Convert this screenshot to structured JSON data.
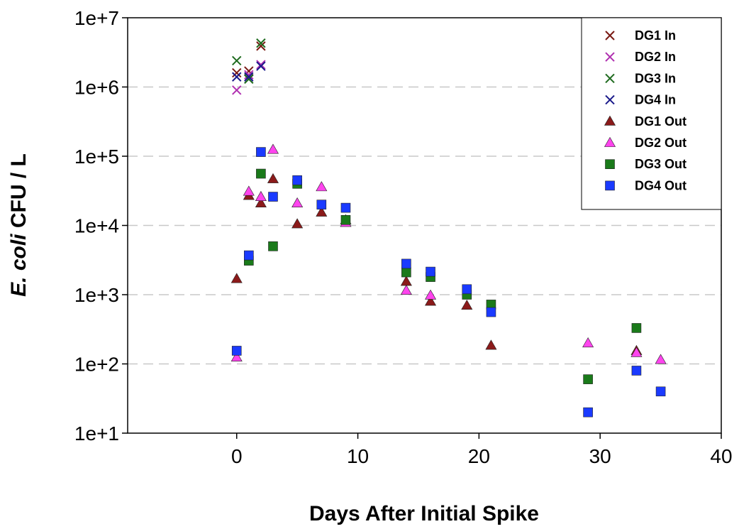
{
  "chart_data": {
    "type": "scatter",
    "title": "",
    "xlabel": "Days After Initial Spike",
    "ylabel_italic": "E. coli",
    "ylabel_rest": " CFU / L",
    "xlim": [
      -9,
      40
    ],
    "ylim": [
      10,
      10000000
    ],
    "yscale": "log",
    "x_ticks": [
      0,
      10,
      20,
      30,
      40
    ],
    "x_tick_labels": [
      "0",
      "10",
      "20",
      "30",
      "40"
    ],
    "y_ticks": [
      10,
      100,
      1000,
      10000,
      100000,
      1000000,
      10000000
    ],
    "y_tick_labels": [
      "1e+1",
      "1e+2",
      "1e+3",
      "1e+4",
      "1e+5",
      "1e+6",
      "1e+7"
    ],
    "grid": "horizontal dashed",
    "legend_position": "top-right",
    "series": [
      {
        "name": "DG1 In",
        "marker": "x",
        "color": "#7a1a14",
        "points": [
          [
            0,
            1600000
          ],
          [
            1,
            1700000
          ],
          [
            2,
            3900000
          ]
        ]
      },
      {
        "name": "DG2 In",
        "marker": "x",
        "color": "#b030b0",
        "points": [
          [
            0,
            900000
          ],
          [
            1,
            1500000
          ],
          [
            2,
            2100000
          ]
        ]
      },
      {
        "name": "DG3 In",
        "marker": "x",
        "color": "#1e6a1e",
        "points": [
          [
            0,
            2400000
          ],
          [
            1,
            1300000
          ],
          [
            2,
            4300000
          ]
        ]
      },
      {
        "name": "DG4 In",
        "marker": "x",
        "color": "#1a1a8a",
        "points": [
          [
            0,
            1400000
          ],
          [
            1,
            1400000
          ],
          [
            2,
            2000000
          ]
        ]
      },
      {
        "name": "DG1 Out",
        "marker": "triangle",
        "color": "#8b1a1a",
        "points": [
          [
            0,
            1700
          ],
          [
            1,
            27000
          ],
          [
            2,
            21000
          ],
          [
            3,
            47000
          ],
          [
            5,
            10500
          ],
          [
            7,
            15500
          ],
          [
            9,
            12000
          ],
          [
            14,
            1550
          ],
          [
            16,
            800
          ],
          [
            19,
            700
          ],
          [
            21,
            185
          ],
          [
            33,
            155
          ]
        ]
      },
      {
        "name": "DG2 Out",
        "marker": "triangle",
        "color": "#ff44ee",
        "points": [
          [
            0,
            125
          ],
          [
            1,
            31000
          ],
          [
            2,
            26000
          ],
          [
            3,
            125000
          ],
          [
            5,
            21000
          ],
          [
            7,
            36000
          ],
          [
            9,
            11000
          ],
          [
            14,
            1150
          ],
          [
            16,
            980
          ],
          [
            29,
            200
          ],
          [
            33,
            145
          ],
          [
            35,
            115
          ]
        ]
      },
      {
        "name": "DG3 Out",
        "marker": "square",
        "color": "#1a7a1a",
        "points": [
          [
            1,
            3100
          ],
          [
            2,
            56000
          ],
          [
            3,
            5000
          ],
          [
            5,
            40000
          ],
          [
            9,
            12000
          ],
          [
            14,
            2100
          ],
          [
            16,
            1800
          ],
          [
            19,
            1000
          ],
          [
            21,
            720
          ],
          [
            29,
            60
          ],
          [
            33,
            330
          ]
        ]
      },
      {
        "name": "DG4 Out",
        "marker": "square",
        "color": "#1a3aff",
        "points": [
          [
            0,
            155
          ],
          [
            1,
            3700
          ],
          [
            2,
            115000
          ],
          [
            3,
            26000
          ],
          [
            5,
            45000
          ],
          [
            7,
            20000
          ],
          [
            9,
            18000
          ],
          [
            14,
            2800
          ],
          [
            16,
            2150
          ],
          [
            19,
            1200
          ],
          [
            21,
            560
          ],
          [
            29,
            20
          ],
          [
            33,
            80
          ],
          [
            35,
            40
          ]
        ]
      }
    ]
  }
}
